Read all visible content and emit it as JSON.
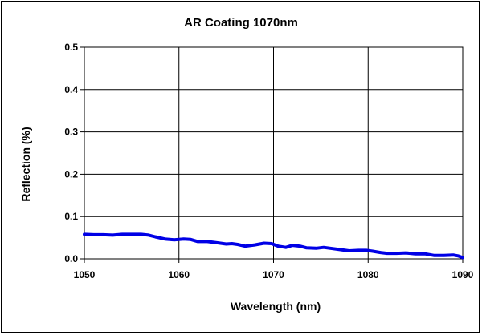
{
  "chart_data": {
    "type": "line",
    "title": "AR Coating 1070nm",
    "xlabel": "Wavelength (nm)",
    "ylabel": "Reflection (%)",
    "xlim": [
      1050,
      1090
    ],
    "ylim": [
      0,
      0.5
    ],
    "xticks": [
      "1050",
      "1060",
      "1070",
      "1080",
      "1090"
    ],
    "yticks": [
      "0.0",
      "0.1",
      "0.2",
      "0.3",
      "0.4",
      "0.5"
    ],
    "grid": true,
    "series": [
      {
        "color": "#0000e6",
        "x": [
          1050,
          1051,
          1052,
          1053,
          1054,
          1055,
          1056,
          1056.8,
          1057.5,
          1058.5,
          1059.5,
          1060.5,
          1061.2,
          1062,
          1063,
          1064,
          1065,
          1065.6,
          1066.2,
          1067,
          1068,
          1069,
          1069.8,
          1070.5,
          1071.3,
          1072,
          1072.8,
          1073.5,
          1074.5,
          1075.3,
          1076,
          1077,
          1078,
          1079,
          1079.8,
          1080.5,
          1081.3,
          1082,
          1083,
          1084,
          1085,
          1086,
          1087,
          1088,
          1089,
          1089.5,
          1090
        ],
        "y": [
          0.058,
          0.057,
          0.057,
          0.056,
          0.058,
          0.058,
          0.058,
          0.056,
          0.052,
          0.047,
          0.045,
          0.047,
          0.046,
          0.041,
          0.041,
          0.038,
          0.035,
          0.036,
          0.034,
          0.03,
          0.033,
          0.037,
          0.036,
          0.03,
          0.027,
          0.032,
          0.03,
          0.026,
          0.025,
          0.027,
          0.025,
          0.022,
          0.019,
          0.02,
          0.02,
          0.018,
          0.015,
          0.013,
          0.013,
          0.014,
          0.012,
          0.012,
          0.008,
          0.008,
          0.009,
          0.007,
          0.003
        ]
      }
    ]
  }
}
